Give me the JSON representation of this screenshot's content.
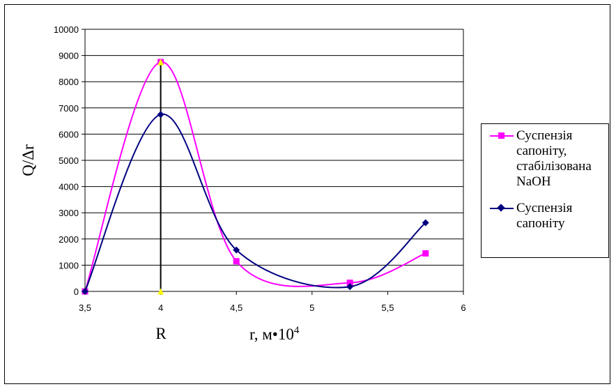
{
  "chart_data": {
    "type": "line",
    "title": "",
    "xlabel_prefix": "r, м•10",
    "xlabel_exp": "4",
    "ylabel": "Q/Δr",
    "marker_label": "R",
    "xlim": [
      3.5,
      6
    ],
    "ylim": [
      0,
      10000
    ],
    "x_ticks": [
      "3,5",
      "4",
      "4,5",
      "5",
      "5,5",
      "6"
    ],
    "x_tick_values": [
      3.5,
      4,
      4.5,
      5,
      5.5,
      6
    ],
    "y_ticks": [
      "0",
      "1000",
      "2000",
      "3000",
      "4000",
      "5000",
      "6000",
      "7000",
      "8000",
      "9000",
      "10000"
    ],
    "y_tick_values": [
      0,
      1000,
      2000,
      3000,
      4000,
      5000,
      6000,
      7000,
      8000,
      9000,
      10000
    ],
    "grid": "horizontal",
    "legend_position": "right",
    "vertical_marker": {
      "x": 4,
      "y_top": 8750,
      "y_bottom": 0
    },
    "series": [
      {
        "name": "Суспензія сапоніту, стабілізована NaOH",
        "name_lines": [
          "Суспензія",
          "сапоніту,",
          "стабілізована",
          "NaOH"
        ],
        "color": "#ff00ff",
        "marker": "square",
        "x": [
          3.5,
          4,
          4.5,
          5.25,
          5.75
        ],
        "y": [
          0,
          8750,
          1150,
          330,
          1450
        ]
      },
      {
        "name": "Суспензія сапоніту",
        "name_lines": [
          "Суспензія",
          "сапоніту"
        ],
        "color": "#000080",
        "marker": "diamond",
        "x": [
          3.5,
          4,
          4.5,
          5.25,
          5.75
        ],
        "y": [
          0,
          6750,
          1580,
          180,
          2620
        ]
      }
    ]
  }
}
